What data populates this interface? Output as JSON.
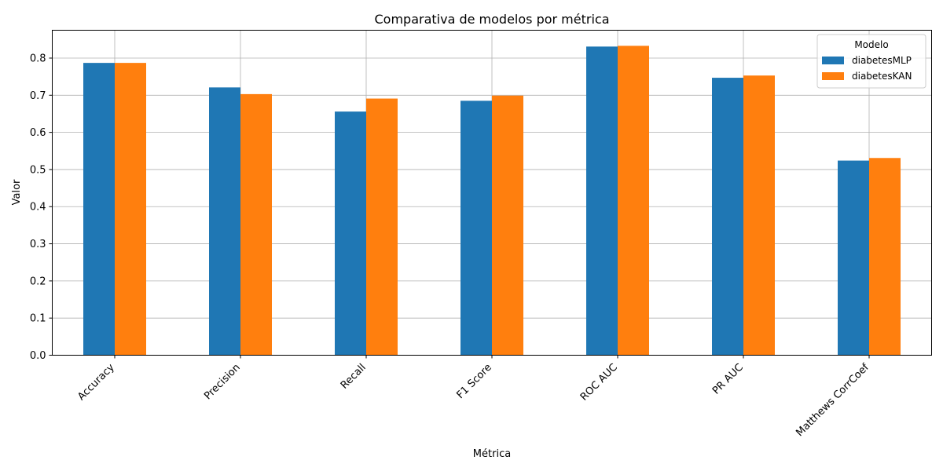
{
  "chart_data": {
    "type": "bar",
    "title": "Comparativa de modelos por métrica",
    "xlabel": "Métrica",
    "ylabel": "Valor",
    "categories": [
      "Accuracy",
      "Precision",
      "Recall",
      "F1 Score",
      "ROC AUC",
      "PR AUC",
      "Matthews CorrCoef"
    ],
    "series": [
      {
        "name": "diabetesMLP",
        "color": "#1f77b4",
        "values": [
          0.787,
          0.721,
          0.656,
          0.685,
          0.831,
          0.747,
          0.524
        ]
      },
      {
        "name": "diabetesKAN",
        "color": "#ff7f0e",
        "values": [
          0.787,
          0.703,
          0.691,
          0.699,
          0.833,
          0.753,
          0.531
        ]
      }
    ],
    "ylim": [
      0,
      0.875
    ],
    "yticks": [
      "0.0",
      "0.1",
      "0.2",
      "0.3",
      "0.4",
      "0.5",
      "0.6",
      "0.7",
      "0.8"
    ],
    "grid": true,
    "legend": {
      "title": "Modelo",
      "position": "top-right"
    }
  }
}
